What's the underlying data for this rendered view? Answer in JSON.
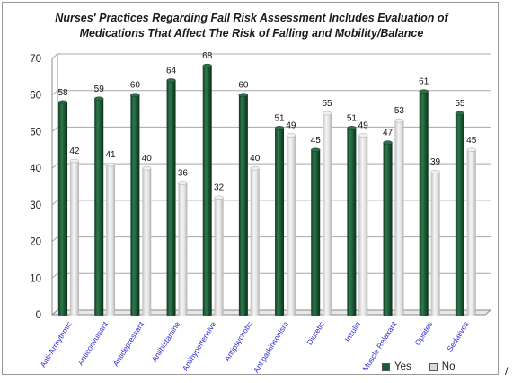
{
  "chart_data": {
    "type": "bar",
    "title_line1": "Nurses' Practices Regarding Fall Risk Assessment Includes Evaluation of",
    "title_line2": "Medications That Affect The Risk of Falling and Mobility/Balance",
    "categories": [
      "Anti-Arrhythmic",
      "Anticonvulsant",
      "Antidepressant",
      "Antihistamine",
      "Antihypertensive",
      "Antipsychotic",
      "Ant parkinsonism",
      "Diuretic",
      "Insulin",
      "Muscle Relaxant",
      "Opiates",
      "Sedatives"
    ],
    "series": [
      {
        "name": "Yes",
        "color": "#1d5a35",
        "values": [
          58,
          59,
          60,
          64,
          68,
          60,
          51,
          45,
          51,
          47,
          61,
          55
        ]
      },
      {
        "name": "No",
        "color": "#d9d9d9",
        "values": [
          42,
          41,
          40,
          36,
          32,
          40,
          49,
          55,
          49,
          53,
          39,
          45
        ]
      }
    ],
    "ylim": [
      0,
      70
    ],
    "yticks": [
      0,
      10,
      20,
      30,
      40,
      50,
      60,
      70
    ],
    "grid": true,
    "legend_position": "bottom-right",
    "category_label_color": "#2b2bd6"
  },
  "trailing_mark": "/"
}
